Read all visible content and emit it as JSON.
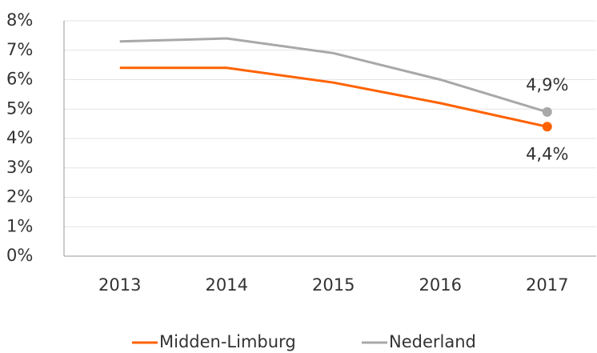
{
  "chart_data": {
    "type": "line",
    "categories": [
      "2013",
      "2014",
      "2015",
      "2016",
      "2017"
    ],
    "series": [
      {
        "name": "Midden-Limburg",
        "color": "#ff6200",
        "values": [
          6.4,
          6.4,
          5.9,
          5.2,
          4.4
        ],
        "value_labels": [
          null,
          null,
          null,
          null,
          "4,4%"
        ]
      },
      {
        "name": "Nederland",
        "color": "#a8a8a8",
        "values": [
          7.3,
          7.4,
          6.9,
          6.0,
          4.9
        ],
        "value_labels": [
          null,
          null,
          null,
          null,
          "4,9%"
        ]
      }
    ],
    "ylim": [
      0,
      8
    ],
    "yticks": [
      {
        "value": 0,
        "label": "0%"
      },
      {
        "value": 1,
        "label": "1%"
      },
      {
        "value": 2,
        "label": "2%"
      },
      {
        "value": 3,
        "label": "3%"
      },
      {
        "value": 4,
        "label": "4%"
      },
      {
        "value": 5,
        "label": "5%"
      },
      {
        "value": 6,
        "label": "6%"
      },
      {
        "value": 7,
        "label": "7%"
      },
      {
        "value": 8,
        "label": "8%"
      }
    ],
    "grid": true
  }
}
